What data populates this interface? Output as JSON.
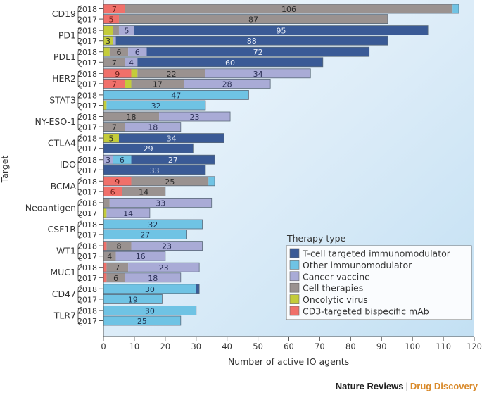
{
  "chart_data": {
    "type": "bar",
    "orientation": "horizontal",
    "stacked": true,
    "xlabel": "Number of active IO agents",
    "ylabel": "Target",
    "xlim": [
      0,
      120
    ],
    "xticks": [
      0,
      10,
      20,
      30,
      40,
      50,
      60,
      70,
      80,
      90,
      100,
      110,
      120
    ],
    "legend_title": "Therapy type",
    "legend_position": "bottom-right",
    "series": [
      {
        "key": "tcell",
        "name": "T-cell targeted immunomodulator",
        "color": "#3a5a96",
        "label_color": "#e8eef8"
      },
      {
        "key": "other",
        "name": "Other immunomodulator",
        "color": "#6fc3e4",
        "label_color": "#1f3350"
      },
      {
        "key": "vaccine",
        "name": "Cancer vaccine",
        "color": "#a9abd6",
        "label_color": "#2a2f55"
      },
      {
        "key": "cell",
        "name": "Cell therapies",
        "color": "#9a9290",
        "label_color": "#2b2b2b"
      },
      {
        "key": "oncolytic",
        "name": "Oncolytic virus",
        "color": "#c4cc3a",
        "label_color": "#2b2b2b"
      },
      {
        "key": "cd3",
        "name": "CD3-targeted bispecific mAb",
        "color": "#f0706a",
        "label_color": "#6b1f1a"
      }
    ],
    "stack_order": [
      "cd3",
      "oncolytic",
      "cell",
      "vaccine",
      "other",
      "tcell"
    ],
    "targets": [
      {
        "name": "CD19",
        "bars": [
          {
            "year": "2018",
            "segments": {
              "cd3": 7,
              "cell": 106,
              "other": 2
            },
            "labels": [
              "cd3",
              "cell"
            ]
          },
          {
            "year": "2017",
            "segments": {
              "cd3": 5,
              "cell": 87
            },
            "labels": [
              "cd3",
              "cell"
            ]
          }
        ]
      },
      {
        "name": "PD1",
        "bars": [
          {
            "year": "2018",
            "segments": {
              "oncolytic": 3,
              "cell": 2,
              "vaccine": 5,
              "tcell": 95
            },
            "labels": [
              "vaccine",
              "tcell"
            ]
          },
          {
            "year": "2017",
            "segments": {
              "oncolytic": 3,
              "vaccine": 1,
              "tcell": 88
            },
            "labels": [
              "oncolytic",
              "tcell"
            ]
          }
        ]
      },
      {
        "name": "PDL1",
        "bars": [
          {
            "year": "2018",
            "segments": {
              "oncolytic": 2,
              "cell": 6,
              "vaccine": 6,
              "tcell": 72
            },
            "labels": [
              "cell",
              "vaccine",
              "tcell"
            ]
          },
          {
            "year": "2017",
            "segments": {
              "cell": 7,
              "vaccine": 4,
              "tcell": 60
            },
            "labels": [
              "cell",
              "vaccine",
              "tcell"
            ]
          }
        ]
      },
      {
        "name": "HER2",
        "bars": [
          {
            "year": "2018",
            "segments": {
              "cd3": 9,
              "oncolytic": 2,
              "cell": 22,
              "vaccine": 34
            },
            "labels": [
              "cd3",
              "cell",
              "vaccine"
            ]
          },
          {
            "year": "2017",
            "segments": {
              "cd3": 7,
              "oncolytic": 2,
              "cell": 17,
              "vaccine": 28
            },
            "labels": [
              "cd3",
              "cell",
              "vaccine"
            ]
          }
        ]
      },
      {
        "name": "STAT3",
        "bars": [
          {
            "year": "2018",
            "segments": {
              "other": 47
            },
            "labels": [
              "other"
            ]
          },
          {
            "year": "2017",
            "segments": {
              "oncolytic": 1,
              "other": 32
            },
            "labels": [
              "other"
            ]
          }
        ]
      },
      {
        "name": "NY-ESO-1",
        "bars": [
          {
            "year": "2018",
            "segments": {
              "cell": 18,
              "vaccine": 23
            },
            "labels": [
              "cell",
              "vaccine"
            ]
          },
          {
            "year": "2017",
            "segments": {
              "cell": 7,
              "vaccine": 18
            },
            "labels": [
              "cell",
              "vaccine"
            ]
          }
        ]
      },
      {
        "name": "CTLA4",
        "bars": [
          {
            "year": "2018",
            "segments": {
              "oncolytic": 5,
              "tcell": 34
            },
            "labels": [
              "oncolytic",
              "tcell"
            ]
          },
          {
            "year": "2017",
            "segments": {
              "tcell": 29
            },
            "labels": [
              "tcell"
            ]
          }
        ]
      },
      {
        "name": "IDO",
        "bars": [
          {
            "year": "2018",
            "segments": {
              "vaccine": 3,
              "other": 6,
              "tcell": 27
            },
            "labels": [
              "vaccine",
              "other",
              "tcell"
            ]
          },
          {
            "year": "2017",
            "segments": {
              "tcell": 33
            },
            "labels": [
              "tcell"
            ]
          }
        ]
      },
      {
        "name": "BCMA",
        "bars": [
          {
            "year": "2018",
            "segments": {
              "cd3": 9,
              "cell": 25,
              "other": 2
            },
            "labels": [
              "cd3",
              "cell"
            ]
          },
          {
            "year": "2017",
            "segments": {
              "cd3": 6,
              "cell": 14
            },
            "labels": [
              "cd3",
              "cell"
            ]
          }
        ]
      },
      {
        "name": "Neoantigen",
        "bars": [
          {
            "year": "2018",
            "segments": {
              "cell": 2,
              "vaccine": 33
            },
            "labels": [
              "vaccine"
            ]
          },
          {
            "year": "2017",
            "segments": {
              "oncolytic": 1,
              "vaccine": 14
            },
            "labels": [
              "vaccine"
            ]
          }
        ]
      },
      {
        "name": "CSF1R",
        "bars": [
          {
            "year": "2018",
            "segments": {
              "other": 32
            },
            "labels": [
              "other"
            ]
          },
          {
            "year": "2017",
            "segments": {
              "other": 27
            },
            "labels": [
              "other"
            ]
          }
        ]
      },
      {
        "name": "WT1",
        "bars": [
          {
            "year": "2018",
            "segments": {
              "cd3": 1,
              "cell": 8,
              "vaccine": 23
            },
            "labels": [
              "cell",
              "vaccine"
            ]
          },
          {
            "year": "2017",
            "segments": {
              "cell": 4,
              "vaccine": 16
            },
            "labels": [
              "cell",
              "vaccine"
            ]
          }
        ]
      },
      {
        "name": "MUC1",
        "bars": [
          {
            "year": "2018",
            "segments": {
              "cd3": 1,
              "cell": 7,
              "vaccine": 23
            },
            "labels": [
              "cell",
              "vaccine"
            ]
          },
          {
            "year": "2017",
            "segments": {
              "cd3": 1,
              "cell": 6,
              "vaccine": 18
            },
            "labels": [
              "cell",
              "vaccine"
            ]
          }
        ]
      },
      {
        "name": "CD47",
        "bars": [
          {
            "year": "2018",
            "segments": {
              "other": 30,
              "tcell": 1
            },
            "labels": [
              "other"
            ]
          },
          {
            "year": "2017",
            "segments": {
              "other": 19
            },
            "labels": [
              "other"
            ]
          }
        ]
      },
      {
        "name": "TLR7",
        "bars": [
          {
            "year": "2018",
            "segments": {
              "other": 30
            },
            "labels": [
              "other"
            ]
          },
          {
            "year": "2017",
            "segments": {
              "other": 25
            },
            "labels": [
              "other"
            ]
          }
        ]
      }
    ]
  },
  "footer": {
    "journal_family": "Nature Reviews",
    "separator": "|",
    "journal_name": "Drug Discovery"
  }
}
